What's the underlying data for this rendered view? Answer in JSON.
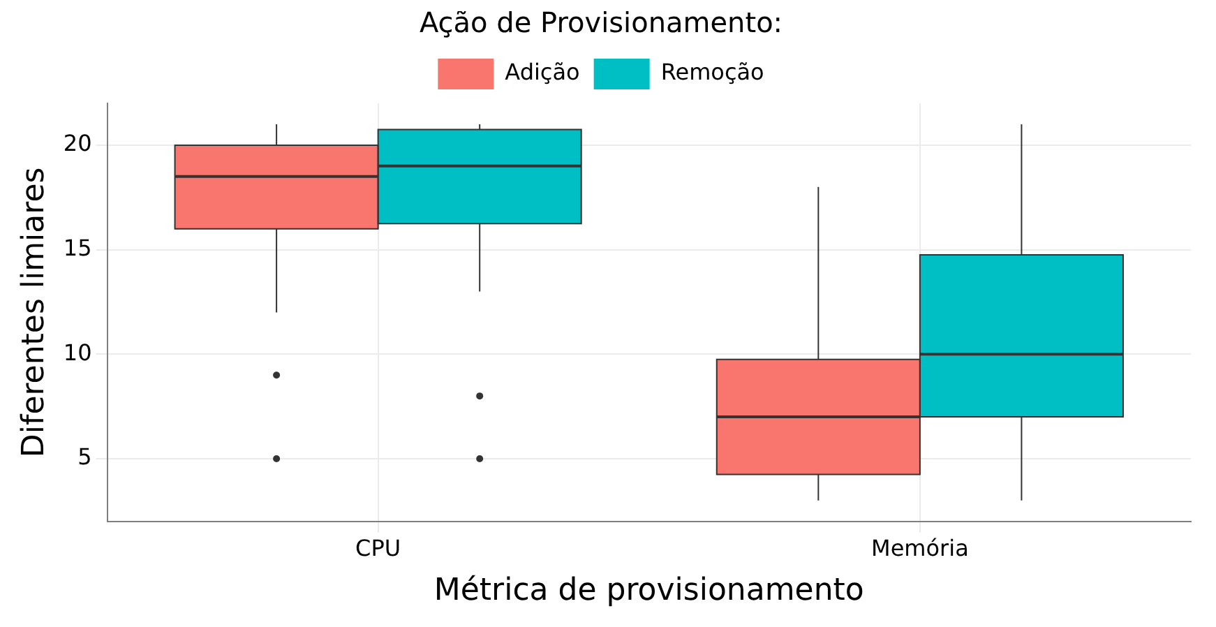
{
  "chart_data": {
    "type": "box",
    "xlabel": "Métrica de provisionamento",
    "ylabel": "Diferentes limiares",
    "legend_title": "Ação de Provisionamento:",
    "legend": "top",
    "grid": true,
    "categories": [
      "CPU",
      "Memória"
    ],
    "ylim": [
      2,
      22
    ],
    "yticks": [
      5,
      10,
      15,
      20
    ],
    "series": [
      {
        "name": "Adição",
        "color": "#f8766d",
        "boxes": [
          {
            "low": 12,
            "q1": 16,
            "median": 18.5,
            "q3": 20,
            "high": 21,
            "outliers": [
              9,
              5
            ]
          },
          {
            "low": 3,
            "q1": 4.25,
            "median": 7,
            "q3": 9.75,
            "high": 18
          }
        ]
      },
      {
        "name": "Remoção",
        "color": "#00bfc4",
        "boxes": [
          {
            "low": 13,
            "q1": 16.25,
            "median": 19,
            "q3": 20.75,
            "high": 21,
            "outliers": [
              8,
              5
            ]
          },
          {
            "low": 3,
            "q1": 7,
            "median": 10,
            "q3": 14.75,
            "high": 21
          }
        ]
      }
    ]
  }
}
